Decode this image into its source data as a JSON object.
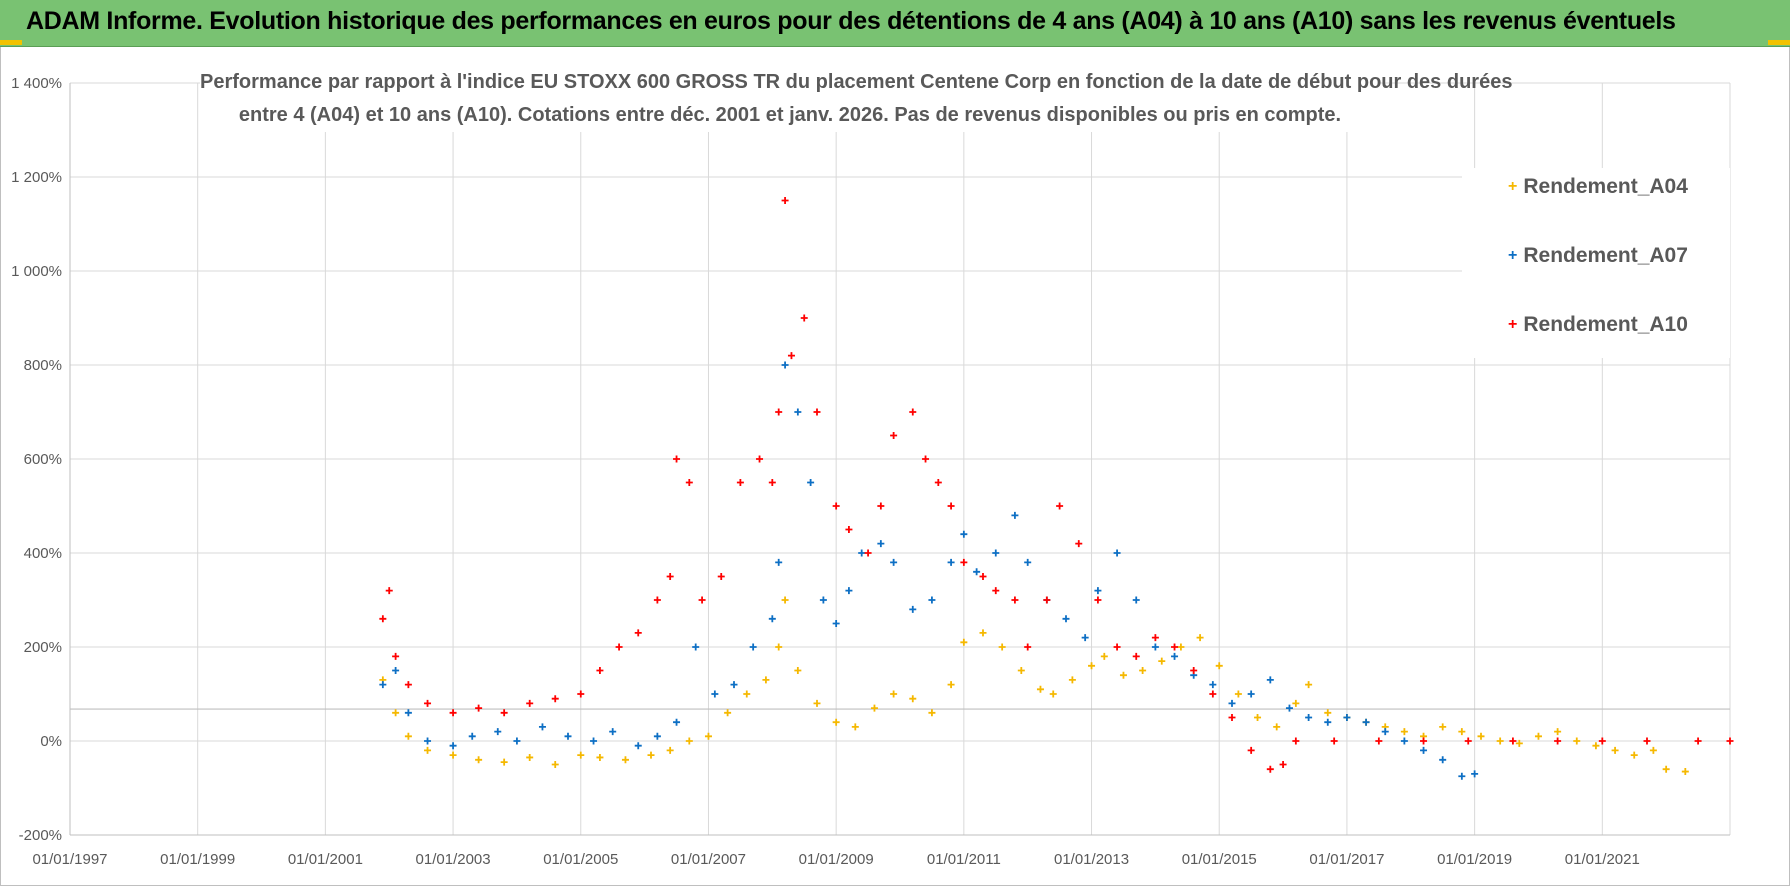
{
  "header": {
    "title": "ADAM Informe. Evolution historique des performances en euros pour des détentions de 4 ans (A04) à 10 ans (A10) sans les revenus éventuels"
  },
  "chart_data": {
    "type": "scatter",
    "title_line1": "Performance par rapport à l'indice EU STOXX 600 GROSS TR  du placement Centene Corp en fonction de la date de début pour des durées",
    "title_line2": "entre 4 (A04) et 10 ans (A10).  Cotations entre déc. 2001 et janv. 2026. Pas de revenus disponibles ou pris en compte.",
    "xlabel": "",
    "ylabel": "",
    "xlim": [
      1997.0,
      2023.0
    ],
    "ylim": [
      -200,
      1400
    ],
    "y_ticks": [
      -200,
      0,
      200,
      400,
      600,
      800,
      1000,
      1200,
      1400
    ],
    "y_tick_labels": [
      "-200%",
      "0%",
      "200%",
      "400%",
      "600%",
      "800%",
      "1 000%",
      "1 200%",
      "1 400%"
    ],
    "x_ticks": [
      1997,
      1999,
      2001,
      2003,
      2005,
      2007,
      2009,
      2011,
      2013,
      2015,
      2017,
      2019,
      2021
    ],
    "x_tick_labels": [
      "01/01/1997",
      "01/01/1999",
      "01/01/2001",
      "01/01/2003",
      "01/01/2005",
      "01/01/2007",
      "01/01/2009",
      "01/01/2011",
      "01/01/2013",
      "01/01/2015",
      "01/01/2017",
      "01/01/2019",
      "01/01/2021"
    ],
    "grid": true,
    "legend_position": "top-right",
    "series": [
      {
        "name": "Rendement_A04",
        "color": "#f5b800",
        "x": [
          2001.9,
          2002.1,
          2002.3,
          2002.6,
          2003.0,
          2003.4,
          2003.8,
          2004.2,
          2004.6,
          2005.0,
          2005.3,
          2005.7,
          2006.1,
          2006.4,
          2006.7,
          2007.0,
          2007.3,
          2007.6,
          2007.9,
          2008.1,
          2008.2,
          2008.4,
          2008.7,
          2009.0,
          2009.3,
          2009.6,
          2009.9,
          2010.2,
          2010.5,
          2010.8,
          2011.0,
          2011.3,
          2011.6,
          2011.9,
          2012.2,
          2012.4,
          2012.7,
          2013.0,
          2013.2,
          2013.5,
          2013.8,
          2014.1,
          2014.4,
          2014.7,
          2015.0,
          2015.3,
          2015.6,
          2015.9,
          2016.2,
          2016.4,
          2016.7,
          2017.0,
          2017.3,
          2017.6,
          2017.9,
          2018.2,
          2018.5,
          2018.8,
          2019.1,
          2019.4,
          2019.7,
          2020.0,
          2020.3,
          2020.6,
          2020.9,
          2021.2,
          2021.5,
          2021.8,
          2022.0,
          2022.3
        ],
        "y": [
          130,
          60,
          10,
          -20,
          -30,
          -40,
          -45,
          -35,
          -50,
          -30,
          -35,
          -40,
          -30,
          -20,
          0,
          10,
          60,
          100,
          130,
          200,
          300,
          150,
          80,
          40,
          30,
          70,
          100,
          90,
          60,
          120,
          210,
          230,
          200,
          150,
          110,
          100,
          130,
          160,
          180,
          140,
          150,
          170,
          200,
          220,
          160,
          100,
          50,
          30,
          80,
          120,
          60,
          50,
          40,
          30,
          20,
          10,
          30,
          20,
          10,
          0,
          -5,
          10,
          20,
          0,
          -10,
          -20,
          -30,
          -20,
          -60,
          -65
        ]
      },
      {
        "name": "Rendement_A07",
        "color": "#0d6fc4",
        "x": [
          2001.9,
          2002.1,
          2002.3,
          2002.6,
          2003.0,
          2003.3,
          2003.7,
          2004.0,
          2004.4,
          2004.8,
          2005.2,
          2005.5,
          2005.9,
          2006.2,
          2006.5,
          2006.8,
          2007.1,
          2007.4,
          2007.7,
          2008.0,
          2008.1,
          2008.2,
          2008.4,
          2008.6,
          2008.8,
          2009.0,
          2009.2,
          2009.4,
          2009.7,
          2009.9,
          2010.2,
          2010.5,
          2010.8,
          2011.0,
          2011.2,
          2011.5,
          2011.8,
          2012.0,
          2012.3,
          2012.6,
          2012.9,
          2013.1,
          2013.4,
          2013.7,
          2014.0,
          2014.3,
          2014.6,
          2014.9,
          2015.2,
          2015.5,
          2015.8,
          2016.1,
          2016.4,
          2016.7,
          2017.0,
          2017.3,
          2017.6,
          2017.9,
          2018.2,
          2018.5,
          2018.8,
          2019.0
        ],
        "y": [
          120,
          150,
          60,
          0,
          -10,
          10,
          20,
          0,
          30,
          10,
          0,
          20,
          -10,
          10,
          40,
          200,
          100,
          120,
          200,
          260,
          380,
          800,
          700,
          550,
          300,
          250,
          320,
          400,
          420,
          380,
          280,
          300,
          380,
          440,
          360,
          400,
          480,
          380,
          300,
          260,
          220,
          320,
          400,
          300,
          200,
          180,
          140,
          120,
          80,
          100,
          130,
          70,
          50,
          40,
          50,
          40,
          20,
          0,
          -20,
          -40,
          -75,
          -70
        ]
      },
      {
        "name": "Rendement_A10",
        "color": "#ff0000",
        "x": [
          2001.9,
          2002.0,
          2002.1,
          2002.3,
          2002.6,
          2003.0,
          2003.4,
          2003.8,
          2004.2,
          2004.6,
          2005.0,
          2005.3,
          2005.6,
          2005.9,
          2006.2,
          2006.4,
          2006.5,
          2006.7,
          2006.9,
          2007.2,
          2007.5,
          2007.8,
          2008.0,
          2008.1,
          2008.2,
          2008.3,
          2008.5,
          2008.7,
          2009.0,
          2009.2,
          2009.5,
          2009.7,
          2009.9,
          2010.2,
          2010.4,
          2010.6,
          2010.8,
          2011.0,
          2011.3,
          2011.5,
          2011.8,
          2012.0,
          2012.3,
          2012.5,
          2012.8,
          2013.1,
          2013.4,
          2013.7,
          2014.0,
          2014.3,
          2014.6,
          2014.9,
          2015.2,
          2015.5,
          2015.8,
          2016.0,
          2016.2,
          2016.8,
          2017.5,
          2018.2,
          2018.9,
          2019.6,
          2020.3,
          2021.0,
          2021.7,
          2022.5,
          2023.0
        ],
        "y": [
          260,
          320,
          180,
          120,
          80,
          60,
          70,
          60,
          80,
          90,
          100,
          150,
          200,
          230,
          300,
          350,
          600,
          550,
          300,
          350,
          550,
          600,
          550,
          700,
          1150,
          820,
          900,
          700,
          500,
          450,
          400,
          500,
          650,
          700,
          600,
          550,
          500,
          380,
          350,
          320,
          300,
          200,
          300,
          500,
          420,
          300,
          200,
          180,
          220,
          200,
          150,
          100,
          50,
          -20,
          -60,
          -50,
          0,
          0,
          0,
          0,
          0,
          0,
          0,
          0,
          0,
          0,
          0
        ]
      }
    ]
  }
}
